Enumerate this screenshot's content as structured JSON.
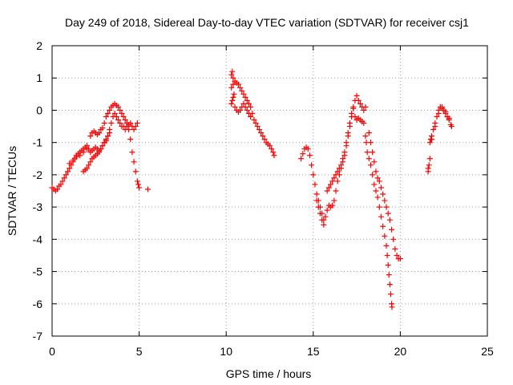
{
  "chart_data": {
    "type": "scatter",
    "title": "Day 249 of 2018, Sidereal Day-to-day VTEC variation (SDTVAR) for receiver csj1",
    "xlabel": "GPS time / hours",
    "ylabel": "SDTVAR / TECUs",
    "xlim": [
      0,
      25
    ],
    "ylim": [
      -7,
      2
    ],
    "xticks": [
      0,
      5,
      10,
      15,
      20,
      25
    ],
    "xtick_labels": [
      "0",
      "5",
      "10",
      "15",
      "20",
      "25"
    ],
    "yticks": [
      2,
      1,
      0,
      -1,
      -2,
      -3,
      -4,
      -5,
      -6,
      -7
    ],
    "ytick_labels": [
      "2",
      "1",
      "0",
      "-1",
      "-2",
      "-3",
      "-4",
      "-5",
      "-6",
      "-7"
    ],
    "grid": true,
    "marker": "+",
    "color": "#ff0000",
    "series": [
      {
        "name": "SDTVAR",
        "points": [
          [
            0.0,
            -2.4
          ],
          [
            0.1,
            -2.45
          ],
          [
            0.2,
            -2.5
          ],
          [
            0.3,
            -2.45
          ],
          [
            0.4,
            -2.35
          ],
          [
            0.5,
            -2.3
          ],
          [
            0.6,
            -2.2
          ],
          [
            0.7,
            -2.1
          ],
          [
            0.8,
            -2.0
          ],
          [
            0.9,
            -1.9
          ],
          [
            1.0,
            -1.8
          ],
          [
            1.1,
            -1.7
          ],
          [
            1.2,
            -1.6
          ],
          [
            1.3,
            -1.5
          ],
          [
            1.4,
            -1.4
          ],
          [
            1.5,
            -1.35
          ],
          [
            1.6,
            -1.3
          ],
          [
            1.7,
            -1.25
          ],
          [
            1.8,
            -1.2
          ],
          [
            1.9,
            -1.15
          ],
          [
            2.0,
            -1.1
          ],
          [
            2.1,
            -1.2
          ],
          [
            2.2,
            -1.3
          ],
          [
            2.3,
            -1.25
          ],
          [
            2.4,
            -1.2
          ],
          [
            2.5,
            -1.15
          ],
          [
            2.6,
            -1.2
          ],
          [
            2.7,
            -1.25
          ],
          [
            2.8,
            -1.2
          ],
          [
            2.9,
            -1.1
          ],
          [
            3.0,
            -1.0
          ],
          [
            3.1,
            -0.9
          ],
          [
            3.2,
            -0.8
          ],
          [
            3.3,
            -0.6
          ],
          [
            3.4,
            -0.4
          ],
          [
            3.5,
            -0.2
          ],
          [
            3.6,
            -0.1
          ],
          [
            3.7,
            -0.2
          ],
          [
            3.8,
            -0.3
          ],
          [
            3.9,
            -0.4
          ],
          [
            4.0,
            -0.5
          ],
          [
            4.1,
            -0.5
          ],
          [
            4.2,
            -0.6
          ],
          [
            4.3,
            -0.5
          ],
          [
            4.4,
            -0.45
          ],
          [
            4.5,
            -0.4
          ],
          [
            4.6,
            -0.5
          ],
          [
            4.7,
            -0.6
          ],
          [
            4.8,
            -0.5
          ],
          [
            4.9,
            -0.4
          ],
          [
            1.0,
            -1.65
          ],
          [
            1.2,
            -1.55
          ],
          [
            1.4,
            -1.45
          ],
          [
            1.6,
            -1.4
          ],
          [
            1.8,
            -1.3
          ],
          [
            2.0,
            -1.2
          ],
          [
            2.2,
            -0.8
          ],
          [
            2.3,
            -0.7
          ],
          [
            2.4,
            -0.65
          ],
          [
            2.5,
            -0.7
          ],
          [
            2.6,
            -0.75
          ],
          [
            2.7,
            -0.7
          ],
          [
            2.8,
            -0.6
          ],
          [
            2.9,
            -0.55
          ],
          [
            3.0,
            -0.4
          ],
          [
            3.1,
            -0.2
          ],
          [
            3.2,
            -0.1
          ],
          [
            3.3,
            0.0
          ],
          [
            3.4,
            0.1
          ],
          [
            3.5,
            0.15
          ],
          [
            3.6,
            0.2
          ],
          [
            3.7,
            0.15
          ],
          [
            3.8,
            0.1
          ],
          [
            3.9,
            0.0
          ],
          [
            4.0,
            -0.1
          ],
          [
            4.1,
            -0.2
          ],
          [
            4.2,
            -0.3
          ],
          [
            4.3,
            -0.4
          ],
          [
            4.4,
            -0.6
          ],
          [
            4.5,
            -0.9
          ],
          [
            4.6,
            -1.3
          ],
          [
            4.7,
            -1.6
          ],
          [
            4.8,
            -1.9
          ],
          [
            4.9,
            -2.2
          ],
          [
            5.0,
            -2.4
          ],
          [
            4.95,
            -2.3
          ],
          [
            1.8,
            -1.9
          ],
          [
            1.9,
            -1.85
          ],
          [
            2.0,
            -1.8
          ],
          [
            2.1,
            -1.7
          ],
          [
            2.2,
            -1.6
          ],
          [
            2.3,
            -1.5
          ],
          [
            2.4,
            -1.45
          ],
          [
            2.5,
            -1.4
          ],
          [
            2.6,
            -1.35
          ],
          [
            2.7,
            -1.3
          ],
          [
            2.8,
            -1.2
          ],
          [
            2.9,
            -1.1
          ],
          [
            3.0,
            -1.0
          ],
          [
            3.1,
            -0.95
          ],
          [
            3.2,
            -0.8
          ],
          [
            3.3,
            -0.7
          ],
          [
            5.5,
            -2.45
          ],
          [
            10.3,
            1.1
          ],
          [
            10.35,
            1.2
          ],
          [
            10.4,
            1.0
          ],
          [
            10.5,
            0.9
          ],
          [
            10.6,
            0.85
          ],
          [
            10.7,
            0.8
          ],
          [
            10.8,
            0.7
          ],
          [
            10.9,
            0.6
          ],
          [
            11.0,
            0.5
          ],
          [
            11.1,
            0.4
          ],
          [
            11.2,
            0.3
          ],
          [
            11.3,
            0.2
          ],
          [
            11.4,
            0.1
          ],
          [
            11.5,
            -0.1
          ],
          [
            11.6,
            -0.3
          ],
          [
            11.7,
            -0.4
          ],
          [
            11.8,
            -0.5
          ],
          [
            11.9,
            -0.6
          ],
          [
            12.0,
            -0.7
          ],
          [
            12.1,
            -0.8
          ],
          [
            12.2,
            -0.9
          ],
          [
            12.3,
            -1.0
          ],
          [
            12.4,
            -1.05
          ],
          [
            12.5,
            -1.1
          ],
          [
            12.6,
            -1.2
          ],
          [
            12.7,
            -1.3
          ],
          [
            12.75,
            -1.4
          ],
          [
            10.3,
            0.2
          ],
          [
            10.35,
            0.3
          ],
          [
            10.4,
            0.4
          ],
          [
            10.45,
            0.5
          ],
          [
            10.5,
            0.1
          ],
          [
            10.6,
            0.0
          ],
          [
            10.7,
            -0.05
          ],
          [
            10.8,
            0.0
          ],
          [
            10.9,
            0.1
          ],
          [
            11.0,
            0.2
          ],
          [
            11.1,
            0.1
          ],
          [
            11.2,
            0.0
          ],
          [
            11.3,
            -0.1
          ],
          [
            11.4,
            -0.2
          ],
          [
            10.3,
            0.7
          ],
          [
            10.4,
            0.8
          ],
          [
            14.3,
            -1.5
          ],
          [
            14.4,
            -1.35
          ],
          [
            14.5,
            -1.2
          ],
          [
            14.6,
            -1.15
          ],
          [
            14.7,
            -1.2
          ],
          [
            14.8,
            -1.4
          ],
          [
            14.9,
            -1.7
          ],
          [
            15.0,
            -2.0
          ],
          [
            15.1,
            -2.3
          ],
          [
            15.2,
            -2.6
          ],
          [
            15.3,
            -2.8
          ],
          [
            15.4,
            -3.0
          ],
          [
            15.5,
            -3.2
          ],
          [
            15.6,
            -3.4
          ],
          [
            15.7,
            -3.3
          ],
          [
            15.8,
            -3.1
          ],
          [
            15.9,
            -2.95
          ],
          [
            16.0,
            -3.0
          ],
          [
            16.1,
            -2.95
          ],
          [
            16.2,
            -2.8
          ],
          [
            16.3,
            -2.5
          ],
          [
            16.4,
            -2.2
          ],
          [
            16.5,
            -2.0
          ],
          [
            16.6,
            -1.8
          ],
          [
            16.7,
            -1.6
          ],
          [
            16.8,
            -1.4
          ],
          [
            16.9,
            -1.1
          ],
          [
            17.0,
            -0.8
          ],
          [
            17.1,
            -0.5
          ],
          [
            17.2,
            -0.2
          ],
          [
            17.3,
            0.1
          ],
          [
            17.4,
            0.3
          ],
          [
            17.5,
            0.45
          ],
          [
            17.6,
            0.3
          ],
          [
            17.7,
            0.2
          ],
          [
            17.8,
            0.1
          ],
          [
            17.9,
            0.0
          ],
          [
            18.0,
            0.1
          ],
          [
            15.6,
            -3.55
          ],
          [
            15.5,
            -3.4
          ],
          [
            15.4,
            -3.2
          ],
          [
            15.3,
            -3.0
          ],
          [
            15.2,
            -2.8
          ],
          [
            15.8,
            -2.5
          ],
          [
            15.9,
            -2.4
          ],
          [
            16.0,
            -2.3
          ],
          [
            16.1,
            -2.2
          ],
          [
            16.2,
            -2.1
          ],
          [
            16.3,
            -2.0
          ],
          [
            16.4,
            -1.9
          ],
          [
            16.5,
            -1.8
          ],
          [
            16.6,
            -1.7
          ],
          [
            16.7,
            -1.5
          ],
          [
            16.8,
            -1.3
          ],
          [
            16.9,
            -1.0
          ],
          [
            17.0,
            -0.7
          ],
          [
            17.1,
            -0.4
          ],
          [
            17.2,
            -0.1
          ],
          [
            17.3,
            0.05
          ],
          [
            17.4,
            -0.2
          ],
          [
            17.5,
            -0.3
          ],
          [
            17.6,
            -0.25
          ],
          [
            17.7,
            -0.3
          ],
          [
            17.8,
            -0.35
          ],
          [
            17.9,
            -0.4
          ],
          [
            18.0,
            -0.8
          ],
          [
            18.05,
            -1.0
          ],
          [
            18.1,
            -1.3
          ],
          [
            18.2,
            -1.5
          ],
          [
            18.3,
            -1.7
          ],
          [
            18.4,
            -2.0
          ],
          [
            18.5,
            -2.3
          ],
          [
            18.6,
            -2.5
          ],
          [
            18.7,
            -2.7
          ],
          [
            18.8,
            -3.0
          ],
          [
            18.9,
            -3.3
          ],
          [
            19.0,
            -3.6
          ],
          [
            19.1,
            -3.9
          ],
          [
            19.2,
            -4.2
          ],
          [
            19.25,
            -4.5
          ],
          [
            19.3,
            -4.8
          ],
          [
            19.35,
            -5.1
          ],
          [
            19.4,
            -5.4
          ],
          [
            19.45,
            -5.7
          ],
          [
            19.5,
            -6.0
          ],
          [
            19.52,
            -6.1
          ],
          [
            18.2,
            -0.7
          ],
          [
            18.3,
            -1.0
          ],
          [
            18.4,
            -1.3
          ],
          [
            18.5,
            -1.6
          ],
          [
            18.6,
            -1.9
          ],
          [
            18.7,
            -2.1
          ],
          [
            18.8,
            -2.2
          ],
          [
            18.9,
            -2.4
          ],
          [
            19.0,
            -2.6
          ],
          [
            19.1,
            -2.8
          ],
          [
            19.2,
            -3.0
          ],
          [
            19.3,
            -3.2
          ],
          [
            19.4,
            -3.4
          ],
          [
            19.5,
            -3.7
          ],
          [
            19.6,
            -4.0
          ],
          [
            19.7,
            -4.3
          ],
          [
            19.8,
            -4.5
          ],
          [
            19.9,
            -4.6
          ],
          [
            20.0,
            -4.6
          ],
          [
            21.6,
            -1.9
          ],
          [
            21.65,
            -1.7
          ],
          [
            21.7,
            -1.0
          ],
          [
            21.75,
            -0.9
          ],
          [
            21.8,
            -0.8
          ],
          [
            21.9,
            -0.6
          ],
          [
            22.0,
            -0.4
          ],
          [
            22.1,
            -0.2
          ],
          [
            22.2,
            0.0
          ],
          [
            22.3,
            0.1
          ],
          [
            22.4,
            0.05
          ],
          [
            22.5,
            0.0
          ],
          [
            22.6,
            -0.1
          ],
          [
            22.7,
            -0.2
          ],
          [
            22.8,
            -0.3
          ],
          [
            22.9,
            -0.45
          ],
          [
            22.95,
            -0.5
          ],
          [
            21.6,
            -1.8
          ],
          [
            21.7,
            -1.5
          ],
          [
            21.8,
            -0.9
          ],
          [
            22.0,
            -0.5
          ],
          [
            22.2,
            -0.1
          ],
          [
            22.4,
            0.1
          ],
          [
            22.6,
            -0.05
          ],
          [
            22.8,
            -0.25
          ]
        ]
      }
    ]
  }
}
